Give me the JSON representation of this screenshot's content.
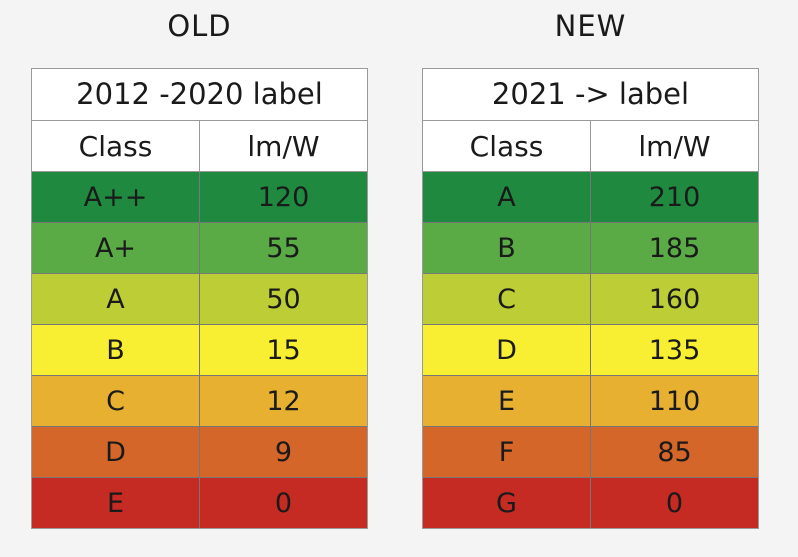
{
  "chart_data": {
    "type": "table",
    "tables": [
      {
        "heading": "OLD",
        "title": "2012 -2020 label",
        "columns": [
          "Class",
          "lm/W"
        ],
        "rows": [
          {
            "class": "A++",
            "value": "120",
            "color": "#1f8a3f"
          },
          {
            "class": "A+",
            "value": "55",
            "color": "#5aab46"
          },
          {
            "class": "A",
            "value": "50",
            "color": "#bccd36"
          },
          {
            "class": "B",
            "value": "15",
            "color": "#f8ee32"
          },
          {
            "class": "C",
            "value": "12",
            "color": "#e8b030"
          },
          {
            "class": "D",
            "value": "9",
            "color": "#d5662a"
          },
          {
            "class": "E",
            "value": "0",
            "color": "#c52a23"
          }
        ]
      },
      {
        "heading": "NEW",
        "title": "2021 -> label",
        "columns": [
          "Class",
          "lm/W"
        ],
        "rows": [
          {
            "class": "A",
            "value": "210",
            "color": "#1f8a3f"
          },
          {
            "class": "B",
            "value": "185",
            "color": "#5aab46"
          },
          {
            "class": "C",
            "value": "160",
            "color": "#bccd36"
          },
          {
            "class": "D",
            "value": "135",
            "color": "#f8ee32"
          },
          {
            "class": "E",
            "value": "110",
            "color": "#e8b030"
          },
          {
            "class": "F",
            "value": "85",
            "color": "#d5662a"
          },
          {
            "class": "G",
            "value": "0",
            "color": "#c52a23"
          }
        ]
      }
    ]
  }
}
